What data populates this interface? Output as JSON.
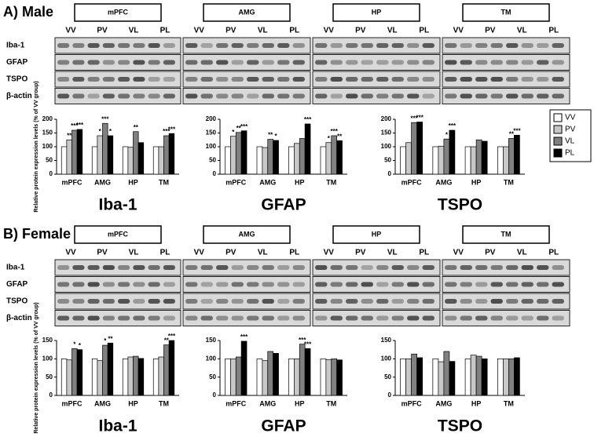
{
  "panels": [
    {
      "label": "A) Male",
      "regions": [
        "mPFC",
        "AMG",
        "HP",
        "TM"
      ],
      "lanes": [
        "VV",
        "PV",
        "VL",
        "PL"
      ],
      "proteins": [
        "Iba-1",
        "GFAP",
        "TSPO",
        "β-actin"
      ]
    },
    {
      "label": "B) Female",
      "regions": [
        "mPFC",
        "AMG",
        "HP",
        "TM"
      ],
      "lanes": [
        "VV",
        "PV",
        "VL",
        "PL"
      ],
      "proteins": [
        "Iba-1",
        "GFAP",
        "TSPO",
        "β-actin"
      ]
    }
  ],
  "chart_data": [
    {
      "type": "bar",
      "title": "Iba-1",
      "ylabel": "Relative protein expression levels (% of VV group)",
      "categories": [
        "mPFC",
        "AMG",
        "HP",
        "TM"
      ],
      "ylim": [
        0,
        200
      ],
      "yticks": [
        0,
        50,
        100,
        150,
        200
      ],
      "series": [
        {
          "name": "VV",
          "color": "#ffffff",
          "values": [
            100,
            100,
            100,
            100
          ],
          "significance": [
            null,
            null,
            null,
            null
          ]
        },
        {
          "name": "PV",
          "color": "#c8c8c8",
          "values": [
            125,
            140,
            98,
            100
          ],
          "significance": [
            "**",
            "*",
            null,
            null
          ]
        },
        {
          "name": "VL",
          "color": "#808080",
          "values": [
            160,
            185,
            155,
            140
          ],
          "significance": [
            "***",
            "***",
            "**",
            "***"
          ]
        },
        {
          "name": "PL",
          "color": "#000000",
          "values": [
            163,
            140,
            115,
            148
          ],
          "significance": [
            "***",
            "*",
            null,
            "***"
          ]
        }
      ]
    },
    {
      "type": "bar",
      "title": "GFAP",
      "categories": [
        "mPFC",
        "AMG",
        "HP",
        "TM"
      ],
      "ylim": [
        0,
        200
      ],
      "yticks": [
        0,
        50,
        100,
        150,
        200
      ],
      "series": [
        {
          "name": "VV",
          "color": "#ffffff",
          "values": [
            100,
            100,
            100,
            100
          ],
          "significance": [
            null,
            null,
            null,
            null
          ]
        },
        {
          "name": "PV",
          "color": "#c8c8c8",
          "values": [
            138,
            97,
            112,
            115
          ],
          "significance": [
            "*",
            null,
            null,
            "*"
          ]
        },
        {
          "name": "VL",
          "color": "#808080",
          "values": [
            152,
            127,
            130,
            140
          ],
          "significance": [
            "**",
            "**",
            null,
            "***"
          ]
        },
        {
          "name": "PL",
          "color": "#000000",
          "values": [
            158,
            123,
            183,
            122
          ],
          "significance": [
            "***",
            "*",
            "***",
            "**"
          ]
        }
      ]
    },
    {
      "type": "bar",
      "title": "TSPO",
      "categories": [
        "mPFC",
        "AMG",
        "HP",
        "TM"
      ],
      "ylim": [
        0,
        200
      ],
      "yticks": [
        0,
        50,
        100,
        150,
        200
      ],
      "series": [
        {
          "name": "VV",
          "color": "#ffffff",
          "values": [
            100,
            100,
            100,
            100
          ],
          "significance": [
            null,
            null,
            null,
            null
          ]
        },
        {
          "name": "PV",
          "color": "#c8c8c8",
          "values": [
            115,
            102,
            100,
            100
          ],
          "significance": [
            null,
            null,
            null,
            null
          ]
        },
        {
          "name": "VL",
          "color": "#808080",
          "values": [
            188,
            128,
            125,
            130
          ],
          "significance": [
            "***",
            "*",
            null,
            "**"
          ]
        },
        {
          "name": "PL",
          "color": "#000000",
          "values": [
            190,
            160,
            120,
            142
          ],
          "significance": [
            "***",
            "***",
            null,
            "***"
          ]
        }
      ]
    },
    {
      "type": "bar",
      "title": "Iba-1",
      "ylabel": "Relative protein expression levels (% of VV group)",
      "categories": [
        "mPFC",
        "AMG",
        "HP",
        "TM"
      ],
      "ylim": [
        0,
        150
      ],
      "yticks": [
        0,
        50,
        100,
        150
      ],
      "series": [
        {
          "name": "VV",
          "color": "#ffffff",
          "values": [
            100,
            100,
            100,
            100
          ],
          "significance": [
            null,
            null,
            null,
            null
          ]
        },
        {
          "name": "PV",
          "color": "#c8c8c8",
          "values": [
            97,
            95,
            105,
            105
          ],
          "significance": [
            null,
            null,
            null,
            null
          ]
        },
        {
          "name": "VL",
          "color": "#808080",
          "values": [
            128,
            137,
            107,
            138
          ],
          "significance": [
            "*",
            "*",
            null,
            "**"
          ]
        },
        {
          "name": "PL",
          "color": "#000000",
          "values": [
            125,
            143,
            101,
            150
          ],
          "significance": [
            "*",
            "**",
            null,
            "***"
          ]
        }
      ]
    },
    {
      "type": "bar",
      "title": "GFAP",
      "categories": [
        "mPFC",
        "AMG",
        "HP",
        "TM"
      ],
      "ylim": [
        0,
        150
      ],
      "yticks": [
        0,
        50,
        100,
        150
      ],
      "series": [
        {
          "name": "VV",
          "color": "#ffffff",
          "values": [
            100,
            100,
            100,
            100
          ],
          "significance": [
            null,
            null,
            null,
            null
          ]
        },
        {
          "name": "PV",
          "color": "#c8c8c8",
          "values": [
            100,
            95,
            100,
            98
          ],
          "significance": [
            null,
            null,
            null,
            null
          ]
        },
        {
          "name": "VL",
          "color": "#808080",
          "values": [
            105,
            120,
            140,
            100
          ],
          "significance": [
            null,
            null,
            "***",
            null
          ]
        },
        {
          "name": "PL",
          "color": "#000000",
          "values": [
            148,
            115,
            128,
            97
          ],
          "significance": [
            "***",
            null,
            "***",
            null
          ]
        }
      ]
    },
    {
      "type": "bar",
      "title": "TSPO",
      "categories": [
        "mPFC",
        "AMG",
        "HP",
        "TM"
      ],
      "ylim": [
        0,
        150
      ],
      "yticks": [
        0,
        50,
        100,
        150
      ],
      "series": [
        {
          "name": "VV",
          "color": "#ffffff",
          "values": [
            100,
            100,
            100,
            100
          ],
          "significance": [
            null,
            null,
            null,
            null
          ]
        },
        {
          "name": "PV",
          "color": "#c8c8c8",
          "values": [
            100,
            92,
            110,
            100
          ],
          "significance": [
            null,
            null,
            null,
            null
          ]
        },
        {
          "name": "VL",
          "color": "#808080",
          "values": [
            113,
            120,
            107,
            100
          ],
          "significance": [
            null,
            null,
            null,
            null
          ]
        },
        {
          "name": "PL",
          "color": "#000000",
          "values": [
            103,
            93,
            100,
            103
          ],
          "significance": [
            null,
            null,
            null,
            null
          ]
        }
      ]
    }
  ]
}
